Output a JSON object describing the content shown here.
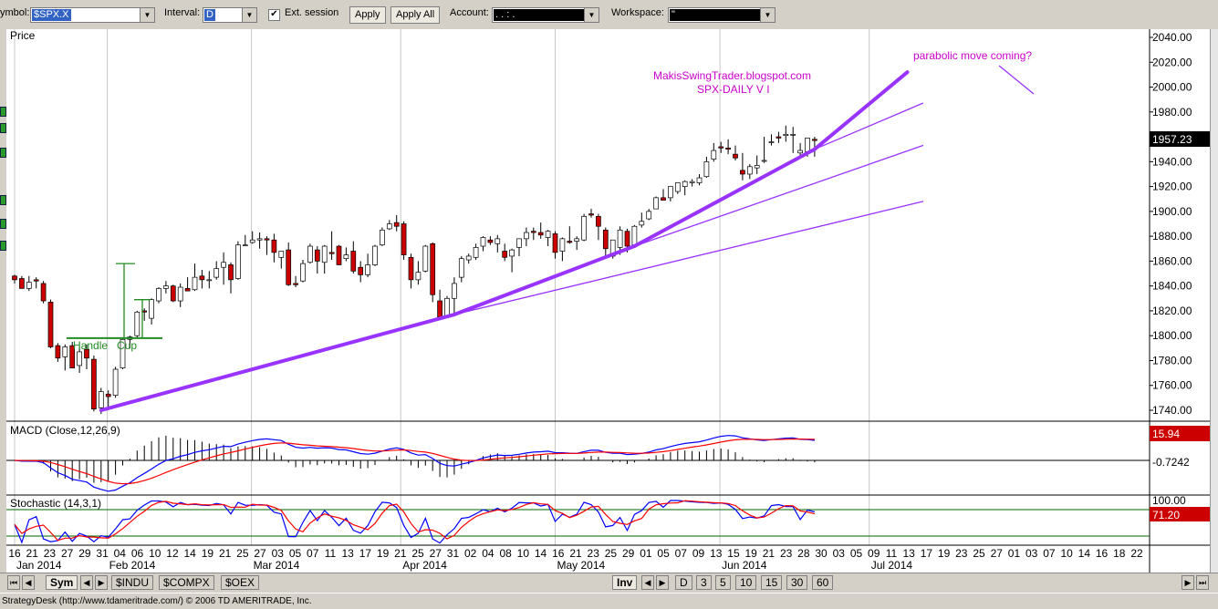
{
  "toolbar": {
    "symbol_label": "ymbol:",
    "symbol_value": "$SPX.X",
    "interval_label": "Interval:",
    "interval_value": "D",
    "ext_session_label": "Ext. session",
    "ext_session_checked": "✔",
    "apply_label": "Apply",
    "apply_all_label": "Apply All",
    "account_label": "Account:",
    "account_value": ".    .    :    .",
    "workspace_label": "Workspace:",
    "workspace_value": "\""
  },
  "tabs": {
    "sym_label": "Sym",
    "symbol_tabs": [
      "$INDU",
      "$COMPX",
      "$OEX"
    ],
    "inv_label": "Inv",
    "interval_tabs": [
      "D",
      "3",
      "5",
      "10",
      "15",
      "30",
      "60"
    ]
  },
  "status_text": "StrategyDesk (http://www.tdameritrade.com/) © 2006 TD AMERITRADE, Inc.",
  "icons": [
    "first-icon",
    "prev-icon",
    "next-icon",
    "last-icon",
    "dropdown-arrow-icon",
    "checkbox-check-icon"
  ],
  "chart_data": [
    {
      "type": "candlestick",
      "panel_label": "Price",
      "annotation_site": "MakisSwingTrader.blogspot.com",
      "annotation_title": "SPX-DAILY  V I",
      "annotation_parabolic": "parabolic move coming?",
      "annotation_handle": "Handle",
      "annotation_cup": "Cup",
      "last_price_label": "1957.23",
      "last_price": 1957.23,
      "ylim": [
        1730,
        2045
      ],
      "y_ticks": [
        "2040.00",
        "2020.00",
        "2000.00",
        "1980.00",
        "1960.00",
        "1940.00",
        "1920.00",
        "1900.00",
        "1880.00",
        "1860.00",
        "1840.00",
        "1820.00",
        "1800.00",
        "1780.00",
        "1760.00",
        "1740.00"
      ],
      "x": [
        "2014-01-16",
        "2014-01-17",
        "2014-01-21",
        "2014-01-22",
        "2014-01-23",
        "2014-01-24",
        "2014-01-27",
        "2014-01-28",
        "2014-01-29",
        "2014-01-30",
        "2014-01-31",
        "2014-02-03",
        "2014-02-04",
        "2014-02-05",
        "2014-02-06",
        "2014-02-07",
        "2014-02-10",
        "2014-02-11",
        "2014-02-12",
        "2014-02-13",
        "2014-02-14",
        "2014-02-18",
        "2014-02-19",
        "2014-02-20",
        "2014-02-21",
        "2014-02-24",
        "2014-02-25",
        "2014-02-26",
        "2014-02-27",
        "2014-02-28",
        "2014-03-03",
        "2014-03-04",
        "2014-03-05",
        "2014-03-06",
        "2014-03-07",
        "2014-03-10",
        "2014-03-11",
        "2014-03-12",
        "2014-03-13",
        "2014-03-14",
        "2014-03-17",
        "2014-03-18",
        "2014-03-19",
        "2014-03-20",
        "2014-03-21",
        "2014-03-24",
        "2014-03-25",
        "2014-03-26",
        "2014-03-27",
        "2014-03-28",
        "2014-03-31",
        "2014-04-01",
        "2014-04-02",
        "2014-04-03",
        "2014-04-04",
        "2014-04-07",
        "2014-04-08",
        "2014-04-09",
        "2014-04-10",
        "2014-04-11",
        "2014-04-14",
        "2014-04-15",
        "2014-04-16",
        "2014-04-17",
        "2014-04-21",
        "2014-04-22",
        "2014-04-23",
        "2014-04-24",
        "2014-04-25",
        "2014-04-28",
        "2014-04-29",
        "2014-04-30",
        "2014-05-01",
        "2014-05-02",
        "2014-05-05",
        "2014-05-06",
        "2014-05-07",
        "2014-05-08",
        "2014-05-09",
        "2014-05-12",
        "2014-05-13",
        "2014-05-14",
        "2014-05-15",
        "2014-05-16",
        "2014-05-19",
        "2014-05-20",
        "2014-05-21",
        "2014-05-22",
        "2014-05-23",
        "2014-05-27",
        "2014-05-28",
        "2014-05-29",
        "2014-05-30",
        "2014-06-02",
        "2014-06-03",
        "2014-06-04",
        "2014-06-05",
        "2014-06-06",
        "2014-06-09",
        "2014-06-10",
        "2014-06-11",
        "2014-06-12",
        "2014-06-13",
        "2014-06-16",
        "2014-06-17",
        "2014-06-18",
        "2014-06-19",
        "2014-06-20",
        "2014-06-23",
        "2014-06-24",
        "2014-06-25",
        "2014-06-26"
      ],
      "open": [
        1848,
        1846,
        1838,
        1845,
        1842,
        1827,
        1792,
        1783,
        1792,
        1776,
        1789,
        1781,
        1742,
        1753,
        1752,
        1774,
        1797,
        1800,
        1820,
        1814,
        1828,
        1838,
        1840,
        1828,
        1838,
        1837,
        1848,
        1845,
        1847,
        1855,
        1857,
        1846,
        1873,
        1875,
        1877,
        1878,
        1877,
        1863,
        1869,
        1842,
        1844,
        1859,
        1869,
        1859,
        1867,
        1872,
        1862,
        1868,
        1855,
        1849,
        1857,
        1873,
        1886,
        1891,
        1890,
        1863,
        1845,
        1852,
        1874,
        1828,
        1816,
        1830,
        1847,
        1861,
        1863,
        1872,
        1877,
        1874,
        1868,
        1864,
        1871,
        1878,
        1884,
        1883,
        1879,
        1882,
        1868,
        1876,
        1876,
        1877,
        1898,
        1896,
        1885,
        1864,
        1871,
        1884,
        1873,
        1889,
        1894,
        1902,
        1911,
        1911,
        1916,
        1920,
        1923,
        1923,
        1928,
        1942,
        1952,
        1951,
        1946,
        1933,
        1930,
        1935,
        1941,
        1956,
        1960,
        1961,
        1962,
        1947,
        1948,
        1958
      ],
      "high": [
        1849,
        1848,
        1848,
        1847,
        1844,
        1829,
        1794,
        1793,
        1795,
        1791,
        1793,
        1784,
        1758,
        1756,
        1775,
        1798,
        1800,
        1820,
        1822,
        1830,
        1839,
        1844,
        1841,
        1842,
        1847,
        1858,
        1853,
        1852,
        1860,
        1867,
        1859,
        1876,
        1881,
        1884,
        1883,
        1880,
        1882,
        1868,
        1875,
        1848,
        1861,
        1874,
        1872,
        1873,
        1884,
        1873,
        1871,
        1876,
        1860,
        1866,
        1873,
        1887,
        1893,
        1897,
        1892,
        1866,
        1860,
        1873,
        1875,
        1837,
        1832,
        1847,
        1864,
        1866,
        1874,
        1880,
        1880,
        1881,
        1874,
        1870,
        1876,
        1887,
        1887,
        1891,
        1885,
        1884,
        1879,
        1888,
        1880,
        1898,
        1902,
        1898,
        1887,
        1876,
        1888,
        1886,
        1889,
        1899,
        1902,
        1912,
        1918,
        1920,
        1923,
        1925,
        1926,
        1930,
        1944,
        1955,
        1956,
        1958,
        1953,
        1947,
        1938,
        1945,
        1960,
        1962,
        1964,
        1969,
        1968,
        1955,
        1959,
        1960
      ],
      "low": [
        1842,
        1838,
        1836,
        1838,
        1826,
        1790,
        1779,
        1772,
        1774,
        1770,
        1773,
        1739,
        1737,
        1740,
        1750,
        1773,
        1790,
        1798,
        1812,
        1809,
        1826,
        1834,
        1827,
        1823,
        1836,
        1836,
        1838,
        1838,
        1845,
        1841,
        1834,
        1845,
        1872,
        1874,
        1870,
        1865,
        1859,
        1854,
        1840,
        1839,
        1843,
        1858,
        1850,
        1850,
        1861,
        1857,
        1860,
        1850,
        1843,
        1847,
        1856,
        1872,
        1885,
        1884,
        1861,
        1838,
        1841,
        1851,
        1827,
        1816,
        1815,
        1816,
        1843,
        1858,
        1861,
        1868,
        1873,
        1867,
        1860,
        1851,
        1864,
        1872,
        1877,
        1878,
        1872,
        1862,
        1860,
        1874,
        1869,
        1876,
        1895,
        1877,
        1862,
        1862,
        1865,
        1867,
        1871,
        1887,
        1893,
        1902,
        1909,
        1908,
        1914,
        1913,
        1920,
        1921,
        1927,
        1940,
        1947,
        1946,
        1941,
        1925,
        1926,
        1930,
        1939,
        1953,
        1955,
        1956,
        1947,
        1943,
        1944,
        1944
      ],
      "close": [
        1845,
        1838,
        1843,
        1844,
        1828,
        1791,
        1782,
        1791,
        1774,
        1787,
        1782,
        1741,
        1755,
        1751,
        1773,
        1797,
        1799,
        1819,
        1819,
        1829,
        1838,
        1840,
        1828,
        1839,
        1836,
        1847,
        1845,
        1845,
        1854,
        1859,
        1845,
        1873,
        1873,
        1877,
        1878,
        1877,
        1867,
        1868,
        1841,
        1841,
        1858,
        1872,
        1860,
        1872,
        1866,
        1857,
        1865,
        1852,
        1849,
        1857,
        1872,
        1885,
        1890,
        1888,
        1865,
        1845,
        1851,
        1872,
        1833,
        1815,
        1830,
        1842,
        1862,
        1864,
        1871,
        1879,
        1875,
        1878,
        1863,
        1869,
        1878,
        1883,
        1883,
        1881,
        1884,
        1867,
        1878,
        1875,
        1878,
        1896,
        1897,
        1888,
        1870,
        1877,
        1885,
        1872,
        1888,
        1892,
        1900,
        1911,
        1909,
        1920,
        1923,
        1924,
        1924,
        1927,
        1940,
        1949,
        1951,
        1950,
        1943,
        1930,
        1936,
        1937,
        1941,
        1956,
        1959,
        1962,
        1962,
        1949,
        1959,
        1957
      ],
      "support_lines": [
        {
          "from": [
            "2014-02-04",
            1740
          ],
          "to": [
            "2014-04-15",
            1817
          ],
          "weight": "heavy"
        },
        {
          "from": [
            "2014-04-15",
            1817
          ],
          "to": [
            "2014-05-21",
            1872
          ],
          "weight": "heavy"
        },
        {
          "from": [
            "2014-05-21",
            1872
          ],
          "to": [
            "2014-06-26",
            1950
          ],
          "weight": "heavy"
        },
        {
          "from": [
            "2014-06-26",
            1950
          ],
          "to": [
            "2014-07-14",
            2012
          ],
          "weight": "heavy"
        },
        {
          "from": [
            "2014-04-15",
            1817
          ],
          "to": [
            "2014-07-17",
            1908
          ],
          "weight": "thin"
        },
        {
          "from": [
            "2014-05-21",
            1872
          ],
          "to": [
            "2014-07-17",
            1953
          ],
          "weight": "thin"
        },
        {
          "from": [
            "2014-06-26",
            1950
          ],
          "to": [
            "2014-07-17",
            1987
          ],
          "weight": "thin"
        }
      ]
    },
    {
      "type": "line",
      "panel_label": "MACD (Close,12,26,9)",
      "value_label_1": "15.94",
      "value_label_2": "-0.7242",
      "series": [
        {
          "name": "MACD",
          "color": "#0000ff"
        },
        {
          "name": "Signal",
          "color": "#ff0000"
        }
      ]
    },
    {
      "type": "line",
      "panel_label": "Stochastic (14,3,1)",
      "value_label_1": "100.00",
      "value_label_2": "71.20",
      "series": [
        {
          "name": "%K",
          "color": "#0000ff"
        },
        {
          "name": "%D",
          "color": "#ff0000"
        }
      ]
    }
  ],
  "x_axis": {
    "day_ticks": [
      "16",
      "21",
      "23",
      "27",
      "29",
      "31",
      "04",
      "06",
      "10",
      "12",
      "14",
      "19",
      "21",
      "25",
      "27",
      "03",
      "05",
      "07",
      "11",
      "13",
      "17",
      "19",
      "21",
      "25",
      "27",
      "31",
      "02",
      "04",
      "08",
      "10",
      "14",
      "16",
      "21",
      "23",
      "25",
      "29",
      "01",
      "05",
      "07",
      "09",
      "13",
      "15",
      "19",
      "21",
      "23",
      "28",
      "30",
      "03",
      "05",
      "09",
      "11",
      "13",
      "17",
      "19",
      "23",
      "25",
      "27",
      "01",
      "03",
      "07",
      "10",
      "14",
      "16",
      "18",
      "22"
    ],
    "months": [
      {
        "label": "Jan 2014",
        "date": "2014-01-16"
      },
      {
        "label": "Feb 2014",
        "date": "2014-02-03"
      },
      {
        "label": "Mar 2014",
        "date": "2014-03-03"
      },
      {
        "label": "Apr 2014",
        "date": "2014-04-01"
      },
      {
        "label": "May 2014",
        "date": "2014-05-01"
      },
      {
        "label": "Jun 2014",
        "date": "2014-06-02"
      },
      {
        "label": "Jul 2014",
        "date": "2014-07-01"
      }
    ]
  },
  "colors": {
    "candle_up": "#ffffff",
    "candle_down": "#cc0000",
    "trendline": "#9933ff",
    "annotation": "#cc00cc",
    "cup_handle": "#228b22",
    "macd_line": "#0000ff",
    "signal_line": "#ff0000"
  }
}
